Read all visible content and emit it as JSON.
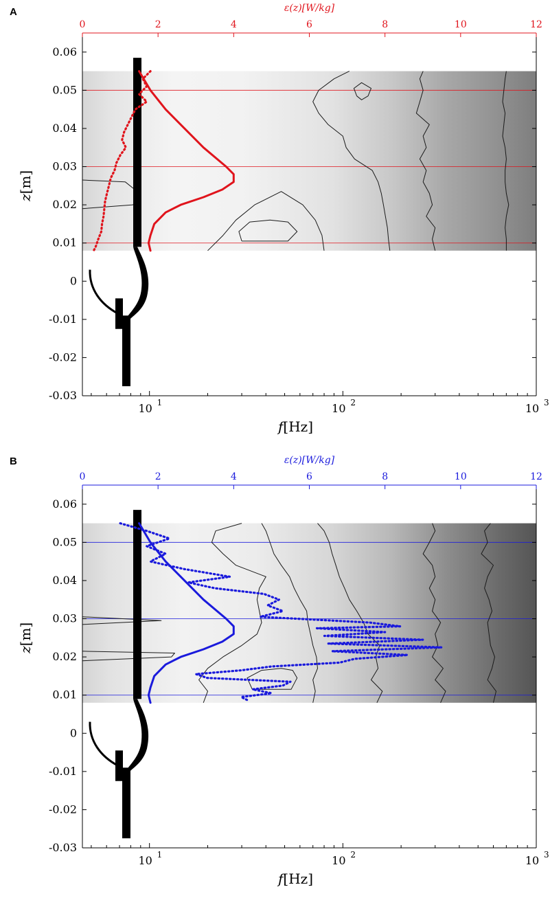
{
  "chart_data": [
    {
      "panel": "A",
      "type": "heatmap",
      "accent_color": "#e0141c",
      "bottom_axis": {
        "label_var": "f",
        "label_unit": "[Hz]",
        "scale": "log",
        "range": [
          4.5,
          1000
        ],
        "ticks": [
          {
            "value": 10,
            "base": "10",
            "exp": "1"
          },
          {
            "value": 100,
            "base": "10",
            "exp": "2"
          },
          {
            "value": 1000,
            "base": "10",
            "exp": "3"
          }
        ]
      },
      "left_axis": {
        "label_var": "z",
        "label_unit": "[m]",
        "range": [
          -0.03,
          0.065
        ],
        "ticks": [
          {
            "value": -0.03,
            "label": "-0.03"
          },
          {
            "value": -0.02,
            "label": "-0.02"
          },
          {
            "value": -0.01,
            "label": "-0.01"
          },
          {
            "value": 0,
            "label": "0"
          },
          {
            "value": 0.01,
            "label": "0.01"
          },
          {
            "value": 0.02,
            "label": "0.02"
          },
          {
            "value": 0.03,
            "label": "0.03"
          },
          {
            "value": 0.04,
            "label": "0.04"
          },
          {
            "value": 0.05,
            "label": "0.05"
          },
          {
            "value": 0.06,
            "label": "0.06"
          }
        ]
      },
      "top_axis": {
        "label": "ε(z)[W/kg]",
        "range": [
          0,
          12
        ],
        "ticks": [
          {
            "value": 0,
            "label": "0"
          },
          {
            "value": 2,
            "label": "2"
          },
          {
            "value": 4,
            "label": "4"
          },
          {
            "value": 6,
            "label": "6"
          },
          {
            "value": 8,
            "label": "8"
          },
          {
            "value": 10,
            "label": "10"
          },
          {
            "value": 12,
            "label": "12"
          }
        ]
      },
      "heatmap_z_range": [
        0.008,
        0.055
      ],
      "horizontal_lines_z": [
        0.05,
        0.03,
        0.01
      ],
      "series": [
        {
          "style": "solid",
          "z": [
            0.055,
            0.05,
            0.045,
            0.04,
            0.035,
            0.03,
            0.028,
            0.026,
            0.024,
            0.022,
            0.02,
            0.018,
            0.015,
            0.012,
            0.01,
            0.008
          ],
          "eps": [
            1.5,
            1.8,
            2.2,
            2.7,
            3.2,
            3.8,
            4.0,
            4.0,
            3.7,
            3.2,
            2.6,
            2.2,
            1.9,
            1.8,
            1.75,
            1.8
          ]
        },
        {
          "style": "dotted",
          "z": [
            0.055,
            0.053,
            0.051,
            0.049,
            0.047,
            0.045,
            0.043,
            0.041,
            0.039,
            0.037,
            0.035,
            0.033,
            0.031,
            0.029,
            0.027,
            0.025,
            0.023,
            0.021,
            0.019,
            0.017,
            0.015,
            0.013,
            0.011,
            0.009,
            0.008
          ],
          "eps": [
            1.8,
            1.6,
            1.7,
            1.5,
            1.7,
            1.4,
            1.3,
            1.2,
            1.1,
            1.05,
            1.15,
            1.0,
            0.9,
            0.85,
            0.75,
            0.7,
            0.65,
            0.6,
            0.58,
            0.56,
            0.52,
            0.5,
            0.42,
            0.35,
            0.3
          ]
        }
      ],
      "contours": [
        {
          "z": [
            0.008,
            0.011,
            0.014,
            0.017,
            0.02,
            0.023,
            0.026,
            0.029,
            0.032,
            0.035,
            0.038,
            0.041,
            0.044,
            0.047,
            0.05,
            0.053,
            0.055
          ],
          "f": [
            700,
            700,
            690,
            700,
            720,
            700,
            690,
            690,
            700,
            690,
            670,
            680,
            690,
            670,
            680,
            690,
            700
          ]
        },
        {
          "z": [
            0.008,
            0.011,
            0.014,
            0.017,
            0.02,
            0.023,
            0.026,
            0.029,
            0.032,
            0.035,
            0.038,
            0.041,
            0.044,
            0.047,
            0.05,
            0.053,
            0.055
          ],
          "f": [
            300,
            290,
            300,
            270,
            290,
            280,
            260,
            270,
            250,
            270,
            260,
            280,
            240,
            250,
            260,
            250,
            260
          ]
        },
        {
          "z": [
            0.008,
            0.011,
            0.014,
            0.017,
            0.02,
            0.023,
            0.026,
            0.029,
            0.032,
            0.035,
            0.038,
            0.041,
            0.044,
            0.047,
            0.05,
            0.053,
            0.055
          ],
          "f": [
            175,
            172,
            170,
            166,
            162,
            158,
            152,
            142,
            115,
            104,
            100,
            84,
            75,
            70,
            75,
            90,
            108
          ]
        },
        {
          "z": [
            0.008,
            0.012,
            0.016,
            0.02,
            0.0235,
            0.02,
            0.016,
            0.012,
            0.008
          ],
          "f": [
            20,
            24,
            28,
            35,
            48,
            62,
            72,
            78,
            80
          ]
        },
        {
          "z": [
            0.0105,
            0.013,
            0.0155,
            0.016,
            0.0155,
            0.013,
            0.0105,
            0.0105
          ],
          "f": [
            30,
            29,
            33,
            42,
            52,
            58,
            52,
            30
          ]
        },
        {
          "z": [
            0.0485,
            0.0505,
            0.052,
            0.0505,
            0.0485,
            0.0475,
            0.0485
          ],
          "f": [
            118,
            114,
            125,
            140,
            135,
            125,
            118
          ]
        },
        {
          "z": [
            0.0265,
            0.026,
            0.024,
            0.022,
            0.021,
            0.02,
            0.019
          ],
          "f": [
            4.5,
            7.5,
            8.4,
            8.9,
            8.8,
            8.2,
            4.5
          ]
        }
      ]
    },
    {
      "panel": "B",
      "type": "heatmap",
      "accent_color": "#1a1adc",
      "bottom_axis": {
        "label_var": "f",
        "label_unit": "[Hz]",
        "scale": "log",
        "range": [
          4.5,
          1000
        ],
        "ticks": [
          {
            "value": 10,
            "base": "10",
            "exp": "1"
          },
          {
            "value": 100,
            "base": "10",
            "exp": "2"
          },
          {
            "value": 1000,
            "base": "10",
            "exp": "3"
          }
        ]
      },
      "left_axis": {
        "label_var": "z",
        "label_unit": "[m]",
        "range": [
          -0.03,
          0.065
        ],
        "ticks": [
          {
            "value": -0.03,
            "label": "-0.03"
          },
          {
            "value": -0.02,
            "label": "-0.02"
          },
          {
            "value": -0.01,
            "label": "-0.01"
          },
          {
            "value": 0,
            "label": "0"
          },
          {
            "value": 0.01,
            "label": "0.01"
          },
          {
            "value": 0.02,
            "label": "0.02"
          },
          {
            "value": 0.03,
            "label": "0.03"
          },
          {
            "value": 0.04,
            "label": "0.04"
          },
          {
            "value": 0.05,
            "label": "0.05"
          },
          {
            "value": 0.06,
            "label": "0.06"
          }
        ]
      },
      "top_axis": {
        "label": "ε(z)[W/kg]",
        "range": [
          0,
          12
        ],
        "ticks": [
          {
            "value": 0,
            "label": "0"
          },
          {
            "value": 2,
            "label": "2"
          },
          {
            "value": 4,
            "label": "4"
          },
          {
            "value": 6,
            "label": "6"
          },
          {
            "value": 8,
            "label": "8"
          },
          {
            "value": 10,
            "label": "10"
          },
          {
            "value": 12,
            "label": "12"
          }
        ]
      },
      "heatmap_z_range": [
        0.008,
        0.055
      ],
      "horizontal_lines_z": [
        0.05,
        0.03,
        0.01
      ],
      "series": [
        {
          "style": "solid",
          "z": [
            0.055,
            0.05,
            0.045,
            0.04,
            0.035,
            0.03,
            0.028,
            0.026,
            0.024,
            0.022,
            0.02,
            0.018,
            0.015,
            0.012,
            0.01,
            0.008
          ],
          "eps": [
            1.5,
            1.8,
            2.2,
            2.7,
            3.2,
            3.8,
            4.0,
            4.0,
            3.7,
            3.2,
            2.6,
            2.2,
            1.9,
            1.8,
            1.75,
            1.8
          ]
        },
        {
          "style": "dotted",
          "z": [
            0.055,
            0.053,
            0.051,
            0.049,
            0.047,
            0.045,
            0.043,
            0.041,
            0.0395,
            0.038,
            0.0365,
            0.035,
            0.0335,
            0.032,
            0.0305,
            0.029,
            0.028,
            0.0275,
            0.0265,
            0.0255,
            0.0245,
            0.0235,
            0.0225,
            0.0215,
            0.0205,
            0.0195,
            0.0185,
            0.0175,
            0.0165,
            0.0155,
            0.0145,
            0.0135,
            0.0125,
            0.0115,
            0.0105,
            0.0095,
            0.0085
          ],
          "eps": [
            1.0,
            1.7,
            2.3,
            1.7,
            2.2,
            1.8,
            2.7,
            3.9,
            2.8,
            3.5,
            4.8,
            5.2,
            4.9,
            5.3,
            4.7,
            7.6,
            8.4,
            6.2,
            8.0,
            6.4,
            9.0,
            6.5,
            9.5,
            6.6,
            8.6,
            7.2,
            6.8,
            5.0,
            4.2,
            3.0,
            3.3,
            5.5,
            5.3,
            4.5,
            5.0,
            4.2,
            4.4
          ]
        }
      ],
      "contours": [
        {
          "z": [
            0.008,
            0.011,
            0.014,
            0.017,
            0.02,
            0.023,
            0.026,
            0.029,
            0.032,
            0.035,
            0.038,
            0.041,
            0.044,
            0.047,
            0.05,
            0.053,
            0.055
          ],
          "f": [
            600,
            620,
            560,
            590,
            610,
            580,
            570,
            560,
            590,
            570,
            540,
            560,
            600,
            520,
            560,
            540,
            580
          ]
        },
        {
          "z": [
            0.008,
            0.011,
            0.014,
            0.017,
            0.02,
            0.023,
            0.026,
            0.029,
            0.032,
            0.035,
            0.038,
            0.041,
            0.044,
            0.047,
            0.05,
            0.053,
            0.055
          ],
          "f": [
            320,
            340,
            300,
            330,
            290,
            310,
            300,
            320,
            290,
            300,
            280,
            300,
            290,
            260,
            280,
            300,
            290
          ]
        },
        {
          "z": [
            0.008,
            0.011,
            0.014,
            0.017,
            0.02,
            0.023,
            0.026,
            0.029,
            0.032,
            0.035,
            0.038,
            0.041,
            0.044,
            0.047,
            0.05,
            0.053,
            0.055
          ],
          "f": [
            150,
            160,
            140,
            152,
            148,
            155,
            135,
            128,
            118,
            108,
            102,
            96,
            92,
            88,
            85,
            80,
            74
          ]
        },
        {
          "z": [
            0.008,
            0.011,
            0.014,
            0.017,
            0.02,
            0.023,
            0.026,
            0.029,
            0.032,
            0.035,
            0.038,
            0.041,
            0.044,
            0.047,
            0.05,
            0.053,
            0.055
          ],
          "f": [
            70,
            72,
            70,
            74,
            73,
            70,
            68,
            66,
            65,
            60,
            56,
            53,
            48,
            44,
            42,
            40,
            38
          ]
        },
        {
          "z": [
            0.008,
            0.011,
            0.014,
            0.017,
            0.02,
            0.023,
            0.026,
            0.029,
            0.032,
            0.035,
            0.038,
            0.041,
            0.044,
            0.047,
            0.05,
            0.053,
            0.055
          ],
          "f": [
            19,
            20,
            18,
            20,
            24,
            30,
            36,
            38,
            37,
            36,
            37,
            40,
            28,
            24,
            21,
            22,
            30
          ]
        },
        {
          "z": [
            0.0115,
            0.0145,
            0.0165,
            0.017,
            0.0165,
            0.0145,
            0.0115,
            0.0115
          ],
          "f": [
            34,
            32,
            38,
            48,
            55,
            58,
            54,
            34
          ]
        },
        {
          "z": [
            0.0305,
            0.0295,
            0.0285
          ],
          "f": [
            4.5,
            11.5,
            4.5
          ]
        },
        {
          "z": [
            0.0215,
            0.021,
            0.02,
            0.019
          ],
          "f": [
            4.5,
            13.5,
            13.0,
            4.5
          ]
        }
      ]
    }
  ]
}
